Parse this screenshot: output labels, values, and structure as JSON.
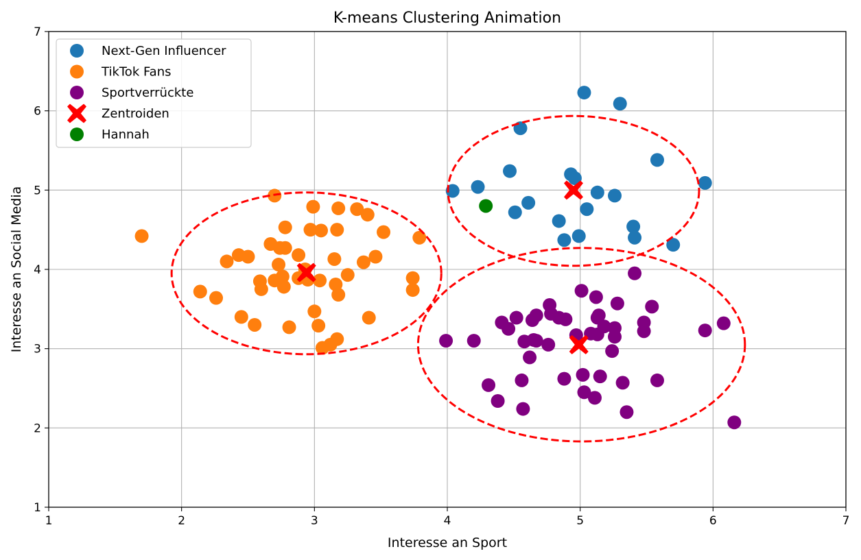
{
  "chart_data": {
    "type": "scatter",
    "title": "K-means Clustering Animation",
    "xlabel": "Interesse an Sport",
    "ylabel": "Interesse an Social Media",
    "xlim": [
      1,
      7
    ],
    "ylim": [
      1,
      7
    ],
    "xticks": [
      "1",
      "2",
      "3",
      "4",
      "5",
      "6",
      "7"
    ],
    "yticks": [
      "1",
      "2",
      "3",
      "4",
      "5",
      "6",
      "7"
    ],
    "grid": true,
    "legend_position": "top-left",
    "colors": {
      "next_gen": "#1f77b4",
      "tiktok": "#ff7f0e",
      "sport": "#800080",
      "centroid": "#ff0000",
      "hannah": "#008000",
      "ellipse": "#ff0000"
    },
    "series": [
      {
        "name": "Next-Gen Influencer",
        "color": "#1f77b4",
        "marker": "circle",
        "points": [
          [
            5.03,
            6.23
          ],
          [
            5.3,
            6.09
          ],
          [
            4.55,
            5.78
          ],
          [
            5.58,
            5.38
          ],
          [
            4.47,
            5.24
          ],
          [
            4.93,
            5.2
          ],
          [
            4.96,
            5.15
          ],
          [
            5.94,
            5.09
          ],
          [
            4.23,
            5.04
          ],
          [
            4.04,
            4.99
          ],
          [
            5.13,
            4.97
          ],
          [
            5.26,
            4.93
          ],
          [
            4.61,
            4.84
          ],
          [
            5.05,
            4.76
          ],
          [
            4.51,
            4.72
          ],
          [
            4.84,
            4.61
          ],
          [
            5.4,
            4.54
          ],
          [
            4.99,
            4.42
          ],
          [
            4.88,
            4.37
          ],
          [
            5.41,
            4.4
          ],
          [
            5.7,
            4.31
          ]
        ]
      },
      {
        "name": "TikTok Fans",
        "color": "#ff7f0e",
        "marker": "circle",
        "points": [
          [
            2.7,
            4.93
          ],
          [
            2.99,
            4.79
          ],
          [
            3.18,
            4.77
          ],
          [
            3.32,
            4.76
          ],
          [
            3.4,
            4.69
          ],
          [
            2.78,
            4.53
          ],
          [
            2.97,
            4.5
          ],
          [
            3.05,
            4.49
          ],
          [
            3.17,
            4.5
          ],
          [
            3.52,
            4.47
          ],
          [
            1.7,
            4.42
          ],
          [
            3.79,
            4.4
          ],
          [
            2.67,
            4.32
          ],
          [
            2.74,
            4.27
          ],
          [
            2.78,
            4.27
          ],
          [
            2.88,
            4.18
          ],
          [
            2.43,
            4.18
          ],
          [
            2.5,
            4.16
          ],
          [
            3.46,
            4.16
          ],
          [
            3.15,
            4.13
          ],
          [
            2.34,
            4.1
          ],
          [
            3.37,
            4.09
          ],
          [
            2.73,
            4.06
          ],
          [
            2.93,
            4.0
          ],
          [
            3.25,
            3.93
          ],
          [
            2.76,
            3.91
          ],
          [
            2.88,
            3.89
          ],
          [
            2.95,
            3.87
          ],
          [
            3.04,
            3.86
          ],
          [
            2.7,
            3.86
          ],
          [
            2.59,
            3.85
          ],
          [
            2.74,
            3.86
          ],
          [
            3.16,
            3.81
          ],
          [
            2.77,
            3.78
          ],
          [
            2.6,
            3.75
          ],
          [
            3.74,
            3.89
          ],
          [
            3.74,
            3.74
          ],
          [
            2.14,
            3.72
          ],
          [
            3.18,
            3.68
          ],
          [
            2.26,
            3.64
          ],
          [
            3.0,
            3.47
          ],
          [
            2.45,
            3.4
          ],
          [
            3.41,
            3.39
          ],
          [
            2.55,
            3.3
          ],
          [
            3.03,
            3.29
          ],
          [
            2.81,
            3.27
          ],
          [
            3.17,
            3.12
          ],
          [
            3.12,
            3.05
          ],
          [
            3.06,
            3.01
          ]
        ]
      },
      {
        "name": "Sportverrückte",
        "color": "#800080",
        "marker": "circle",
        "points": [
          [
            5.41,
            3.95
          ],
          [
            5.01,
            3.73
          ],
          [
            5.12,
            3.65
          ],
          [
            5.28,
            3.57
          ],
          [
            4.77,
            3.55
          ],
          [
            5.54,
            3.53
          ],
          [
            4.78,
            3.44
          ],
          [
            4.67,
            3.42
          ],
          [
            4.84,
            3.39
          ],
          [
            4.89,
            3.37
          ],
          [
            5.14,
            3.42
          ],
          [
            5.13,
            3.39
          ],
          [
            4.52,
            3.39
          ],
          [
            4.41,
            3.33
          ],
          [
            4.64,
            3.36
          ],
          [
            5.48,
            3.33
          ],
          [
            6.08,
            3.32
          ],
          [
            5.18,
            3.28
          ],
          [
            5.26,
            3.26
          ],
          [
            4.46,
            3.25
          ],
          [
            5.94,
            3.23
          ],
          [
            5.48,
            3.22
          ],
          [
            5.08,
            3.19
          ],
          [
            5.13,
            3.18
          ],
          [
            4.97,
            3.17
          ],
          [
            5.26,
            3.15
          ],
          [
            4.58,
            3.09
          ],
          [
            4.65,
            3.11
          ],
          [
            4.67,
            3.1
          ],
          [
            3.99,
            3.1
          ],
          [
            4.2,
            3.1
          ],
          [
            4.76,
            3.05
          ],
          [
            5.24,
            2.97
          ],
          [
            4.62,
            2.89
          ],
          [
            5.02,
            2.67
          ],
          [
            5.15,
            2.65
          ],
          [
            4.88,
            2.62
          ],
          [
            4.56,
            2.6
          ],
          [
            5.58,
            2.6
          ],
          [
            5.32,
            2.57
          ],
          [
            4.31,
            2.54
          ],
          [
            5.03,
            2.45
          ],
          [
            5.11,
            2.38
          ],
          [
            4.38,
            2.34
          ],
          [
            4.57,
            2.24
          ],
          [
            5.35,
            2.2
          ],
          [
            6.16,
            2.07
          ]
        ]
      },
      {
        "name": "Zentroiden",
        "color": "#ff0000",
        "marker": "X",
        "points": [
          [
            4.95,
            5.0
          ],
          [
            2.94,
            3.96
          ],
          [
            4.99,
            3.05
          ]
        ]
      },
      {
        "name": "Hannah",
        "color": "#008000",
        "marker": "circle",
        "points": [
          [
            4.29,
            4.8
          ]
        ]
      }
    ],
    "ellipses": [
      {
        "cx": 4.95,
        "cy": 4.99,
        "rx": 0.945,
        "ry": 0.945
      },
      {
        "cx": 2.94,
        "cy": 3.95,
        "rx": 1.015,
        "ry": 1.02
      },
      {
        "cx": 5.01,
        "cy": 3.05,
        "rx": 1.23,
        "ry": 1.22
      }
    ]
  }
}
